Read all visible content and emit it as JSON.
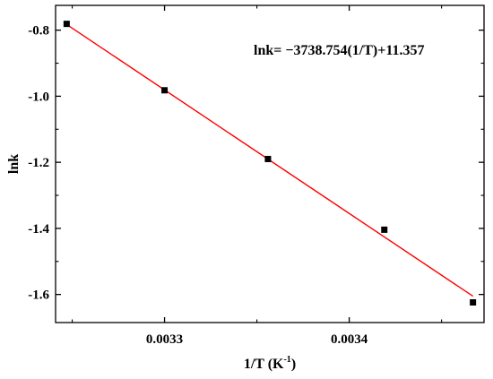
{
  "chart_data": {
    "type": "scatter",
    "xlabel": "1/T (K",
    "xlabel_sup": "-1",
    "xlabel_close": ")",
    "ylabel": "lnk",
    "xlim": [
      0.003241,
      0.003473
    ],
    "ylim": [
      -1.685,
      -0.725
    ],
    "x_ticks": [
      0.0033,
      0.0034
    ],
    "x_tick_labels": [
      "0.0033",
      "0.0034"
    ],
    "x_minor_ticks": [
      0.00325,
      0.00335,
      0.00345
    ],
    "y_ticks": [
      -0.8,
      -1.0,
      -1.2,
      -1.4,
      -1.6
    ],
    "y_tick_labels": [
      "-0.8",
      "-1.0",
      "-1.2",
      "-1.4",
      "-1.6"
    ],
    "y_minor_ticks": [
      -0.9,
      -1.1,
      -1.3,
      -1.5
    ],
    "grid": false,
    "legend": "none",
    "series": [
      {
        "marker": "square",
        "color": "#000000",
        "x": [
          0.003247,
          0.0033,
          0.003356,
          0.003419,
          0.003467
        ],
        "y": [
          -0.781,
          -0.982,
          -1.19,
          -1.404,
          -1.624
        ]
      }
    ],
    "fit": {
      "color": "#ff0000",
      "slope": -3738.754,
      "intercept": 11.357,
      "x_range": [
        0.003247,
        0.003467
      ],
      "equation": "lnk= −3738.754(1/T)+11.357"
    }
  }
}
